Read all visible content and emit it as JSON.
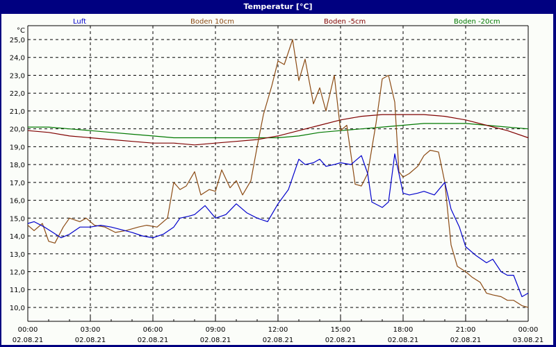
{
  "window": {
    "title": "Temperatur [°C]"
  },
  "legend": [
    {
      "label": "Luft",
      "color": "#0000cc"
    },
    {
      "label": "Boden 10cm",
      "color": "#8b4a13"
    },
    {
      "label": "Boden -5cm",
      "color": "#800000"
    },
    {
      "label": "Boden -20cm",
      "color": "#007800"
    }
  ],
  "chart_data": {
    "type": "line",
    "title": "Temperatur [°C]",
    "xlabel": "",
    "ylabel": "°C",
    "ylim": [
      9.5,
      25.5
    ],
    "xlim_hours": [
      0,
      24
    ],
    "grid": true,
    "legend_position": "top",
    "y_ticks": [
      "25,0",
      "24,0",
      "23,0",
      "22,0",
      "21,0",
      "20,0",
      "19,0",
      "18,0",
      "17,0",
      "16,0",
      "15,0",
      "14,0",
      "13,0",
      "12,0",
      "11,0",
      "10,0"
    ],
    "x_ticks": [
      {
        "time": "00:00",
        "date": "02.08.21"
      },
      {
        "time": "03:00",
        "date": "02.08.21"
      },
      {
        "time": "06:00",
        "date": "02.08.21"
      },
      {
        "time": "09:00",
        "date": "02.08.21"
      },
      {
        "time": "12:00",
        "date": "02.08.21"
      },
      {
        "time": "15:00",
        "date": "02.08.21"
      },
      {
        "time": "18:00",
        "date": "02.08.21"
      },
      {
        "time": "21:00",
        "date": "02.08.21"
      },
      {
        "time": "00:00",
        "date": "03.08.21"
      }
    ],
    "series": [
      {
        "name": "Luft",
        "color": "#0000cc",
        "x": [
          0,
          0.3,
          0.8,
          1.2,
          1.6,
          2.0,
          2.5,
          3.0,
          3.5,
          4.0,
          5.0,
          5.5,
          6.0,
          6.5,
          7.0,
          7.3,
          7.7,
          8.0,
          8.5,
          9.0,
          9.5,
          10.0,
          10.5,
          11.0,
          11.5,
          12.0,
          12.5,
          13.0,
          13.3,
          13.7,
          14.0,
          14.3,
          14.7,
          15.0,
          15.5,
          16.0,
          16.3,
          16.5,
          17.0,
          17.3,
          17.6,
          18.0,
          18.3,
          18.7,
          19.0,
          19.5,
          20.0,
          20.3,
          20.7,
          21.0,
          21.5,
          22.0,
          22.3,
          22.7,
          23.0,
          23.3,
          23.7,
          24.0
        ],
        "values": [
          14.7,
          14.8,
          14.5,
          14.2,
          13.9,
          14.1,
          14.5,
          14.5,
          14.6,
          14.5,
          14.2,
          14.0,
          13.9,
          14.1,
          14.5,
          15.0,
          15.1,
          15.2,
          15.7,
          15.0,
          15.2,
          15.8,
          15.3,
          15.0,
          14.8,
          15.8,
          16.6,
          18.3,
          18.0,
          18.1,
          18.3,
          17.9,
          18.0,
          18.1,
          18.0,
          18.5,
          17.5,
          15.9,
          15.6,
          15.9,
          18.6,
          16.4,
          16.3,
          16.4,
          16.5,
          16.3,
          17.0,
          15.5,
          14.5,
          13.4,
          12.9,
          12.5,
          12.7,
          12.0,
          11.8,
          11.8,
          10.6,
          10.8
        ]
      },
      {
        "name": "Boden 10cm",
        "color": "#8b4a13",
        "x": [
          0,
          0.3,
          0.7,
          1.0,
          1.3,
          1.7,
          2.0,
          2.5,
          2.8,
          3.2,
          3.7,
          4.2,
          4.7,
          5.3,
          5.7,
          6.2,
          6.7,
          7.0,
          7.3,
          7.6,
          8.0,
          8.3,
          8.7,
          9.0,
          9.3,
          9.7,
          10.0,
          10.3,
          10.7,
          11.0,
          11.3,
          11.7,
          12.0,
          12.3,
          12.7,
          13.0,
          13.3,
          13.7,
          14.0,
          14.3,
          14.7,
          15.0,
          15.3,
          15.7,
          16.0,
          16.3,
          16.7,
          17.0,
          17.3,
          17.6,
          17.8,
          18.0,
          18.3,
          18.7,
          19.0,
          19.3,
          19.7,
          20.0,
          20.3,
          20.6,
          21.0,
          21.3,
          21.7,
          22.0,
          22.3,
          22.7,
          23.0,
          23.3,
          23.7,
          24.0
        ],
        "values": [
          14.6,
          14.3,
          14.7,
          13.7,
          13.6,
          14.5,
          15.0,
          14.8,
          15.0,
          14.6,
          14.5,
          14.2,
          14.3,
          14.5,
          14.6,
          14.5,
          15.0,
          17.0,
          16.6,
          16.8,
          17.6,
          16.3,
          16.6,
          16.5,
          17.7,
          16.7,
          17.1,
          16.3,
          17.1,
          19.0,
          20.8,
          22.4,
          23.8,
          23.6,
          25.0,
          22.7,
          23.9,
          21.4,
          22.3,
          21.0,
          23.0,
          19.9,
          20.2,
          16.9,
          16.8,
          17.5,
          20.3,
          22.8,
          23.0,
          21.5,
          17.6,
          17.3,
          17.5,
          17.9,
          18.5,
          18.8,
          18.7,
          17.0,
          13.5,
          12.3,
          12.0,
          11.7,
          11.4,
          10.8,
          10.7,
          10.6,
          10.4,
          10.4,
          10.1,
          10.0
        ]
      },
      {
        "name": "Boden -5cm",
        "color": "#800000",
        "x": [
          0,
          1,
          2,
          3,
          4,
          5,
          6,
          7,
          8,
          9,
          10,
          11,
          12,
          13,
          14,
          15,
          16,
          17,
          18,
          19,
          20,
          21,
          22,
          23,
          24
        ],
        "values": [
          19.9,
          19.8,
          19.6,
          19.5,
          19.4,
          19.3,
          19.2,
          19.2,
          19.1,
          19.2,
          19.3,
          19.4,
          19.6,
          19.9,
          20.2,
          20.5,
          20.7,
          20.8,
          20.8,
          20.8,
          20.7,
          20.5,
          20.2,
          19.9,
          19.5
        ]
      },
      {
        "name": "Boden -20cm",
        "color": "#007800",
        "x": [
          0,
          1,
          2,
          3,
          4,
          5,
          6,
          7,
          8,
          9,
          10,
          11,
          12,
          13,
          14,
          15,
          16,
          17,
          18,
          19,
          20,
          21,
          22,
          23,
          24
        ],
        "values": [
          20.1,
          20.1,
          20.0,
          19.9,
          19.8,
          19.7,
          19.6,
          19.5,
          19.5,
          19.5,
          19.5,
          19.5,
          19.5,
          19.6,
          19.8,
          19.9,
          20.0,
          20.1,
          20.2,
          20.3,
          20.3,
          20.3,
          20.2,
          20.1,
          20.0
        ]
      }
    ]
  }
}
